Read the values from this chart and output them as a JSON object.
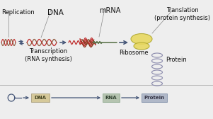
{
  "bg_color": "#eeeeee",
  "labels": {
    "replication": "Replication",
    "dna": "DNA",
    "mrna": "mRNA",
    "translation": "Translation\n(protein synthesis)",
    "transcription": "Transcription\n(RNA synthesis)",
    "ribosome": "Ribosome",
    "protein": "Protein"
  },
  "box_labels": [
    "DNA",
    "RNA",
    "Protein"
  ],
  "box_colors": [
    "#d6c99a",
    "#b5c4b0",
    "#b0b8c8"
  ],
  "box_edge_colors": [
    "#aaa080",
    "#90aa90",
    "#8090a8"
  ],
  "arrow_color": "#445577",
  "dna_red": "#c03030",
  "dna_brown": "#804020",
  "mrna_green": "#607850",
  "ribosome_yellow": "#e8d860",
  "ribosome_edge": "#b0a830",
  "protein_coil": "#9090b0",
  "label_line_color": "#888888",
  "divider_color": "#bbbbbb"
}
